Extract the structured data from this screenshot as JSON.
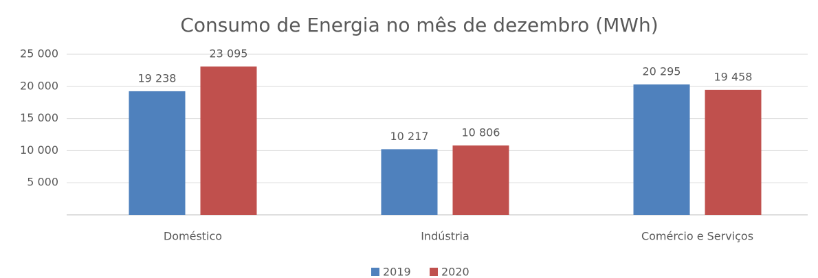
{
  "chart_data": {
    "type": "bar",
    "title": "Consumo de Energia no mês de dezembro (MWh)",
    "categories": [
      "Doméstico",
      "Indústria",
      "Comércio e Serviços"
    ],
    "series": [
      {
        "name": "2019",
        "color": "#4f81bd",
        "values": [
          19238,
          10217,
          20295
        ],
        "value_labels": [
          "19 238",
          "10 217",
          "20 295"
        ]
      },
      {
        "name": "2020",
        "color": "#c0504d",
        "values": [
          23095,
          10806,
          19458
        ],
        "value_labels": [
          "23 095",
          "10 806",
          "19 458"
        ]
      }
    ],
    "ylim": [
      0,
      25000
    ],
    "yticks": [
      {
        "value": 5000,
        "label": "5 000"
      },
      {
        "value": 10000,
        "label": "10 000"
      },
      {
        "value": 15000,
        "label": "15 000"
      },
      {
        "value": 20000,
        "label": "20 000"
      },
      {
        "value": 25000,
        "label": "25 000"
      }
    ],
    "grid": true,
    "legend": "bottom"
  }
}
